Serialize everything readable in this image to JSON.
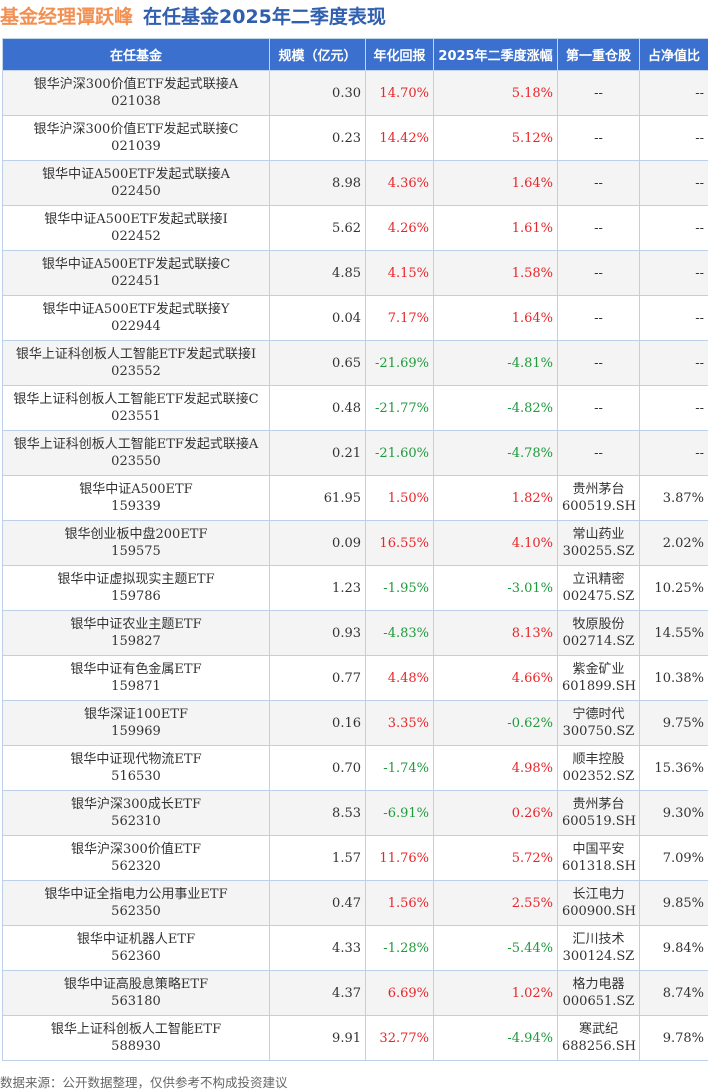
{
  "title": {
    "manager": "基金经理谭跃峰",
    "subtitle": "在任基金2025年二季度表现"
  },
  "colors": {
    "header_bg": "#3b70cf",
    "positive": "#e8262a",
    "negative": "#1f9a3c",
    "title_orange": "#f29052",
    "title_blue": "#2f5fae"
  },
  "columns": [
    "在任基金",
    "规模（亿元）",
    "年化回报",
    "2025年二季度涨幅",
    "第一重仓股",
    "占净值比"
  ],
  "rows": [
    [
      "银华沪深300价值ETF发起式联接A",
      "021038",
      "0.30",
      "14.70%",
      "5.18%",
      "--",
      "",
      "--"
    ],
    [
      "银华沪深300价值ETF发起式联接C",
      "021039",
      "0.23",
      "14.42%",
      "5.12%",
      "--",
      "",
      "--"
    ],
    [
      "银华中证A500ETF发起式联接A",
      "022450",
      "8.98",
      "4.36%",
      "1.64%",
      "--",
      "",
      "--"
    ],
    [
      "银华中证A500ETF发起式联接I",
      "022452",
      "5.62",
      "4.26%",
      "1.61%",
      "--",
      "",
      "--"
    ],
    [
      "银华中证A500ETF发起式联接C",
      "022451",
      "4.85",
      "4.15%",
      "1.58%",
      "--",
      "",
      "--"
    ],
    [
      "银华中证A500ETF发起式联接Y",
      "022944",
      "0.04",
      "7.17%",
      "1.64%",
      "--",
      "",
      "--"
    ],
    [
      "银华上证科创板人工智能ETF发起式联接I",
      "023552",
      "0.65",
      "-21.69%",
      "-4.81%",
      "--",
      "",
      "--"
    ],
    [
      "银华上证科创板人工智能ETF发起式联接C",
      "023551",
      "0.48",
      "-21.77%",
      "-4.82%",
      "--",
      "",
      "--"
    ],
    [
      "银华上证科创板人工智能ETF发起式联接A",
      "023550",
      "0.21",
      "-21.60%",
      "-4.78%",
      "--",
      "",
      "--"
    ],
    [
      "银华中证A500ETF",
      "159339",
      "61.95",
      "1.50%",
      "1.82%",
      "贵州茅台",
      "600519.SH",
      "3.87%"
    ],
    [
      "银华创业板中盘200ETF",
      "159575",
      "0.09",
      "16.55%",
      "4.10%",
      "常山药业",
      "300255.SZ",
      "2.02%"
    ],
    [
      "银华中证虚拟现实主题ETF",
      "159786",
      "1.23",
      "-1.95%",
      "-3.01%",
      "立讯精密",
      "002475.SZ",
      "10.25%"
    ],
    [
      "银华中证农业主题ETF",
      "159827",
      "0.93",
      "-4.83%",
      "8.13%",
      "牧原股份",
      "002714.SZ",
      "14.55%"
    ],
    [
      "银华中证有色金属ETF",
      "159871",
      "0.77",
      "4.48%",
      "4.66%",
      "紫金矿业",
      "601899.SH",
      "10.38%"
    ],
    [
      "银华深证100ETF",
      "159969",
      "0.16",
      "3.35%",
      "-0.62%",
      "宁德时代",
      "300750.SZ",
      "9.75%"
    ],
    [
      "银华中证现代物流ETF",
      "516530",
      "0.70",
      "-1.74%",
      "4.98%",
      "顺丰控股",
      "002352.SZ",
      "15.36%"
    ],
    [
      "银华沪深300成长ETF",
      "562310",
      "8.53",
      "-6.91%",
      "0.26%",
      "贵州茅台",
      "600519.SH",
      "9.30%"
    ],
    [
      "银华沪深300价值ETF",
      "562320",
      "1.57",
      "11.76%",
      "5.72%",
      "中国平安",
      "601318.SH",
      "7.09%"
    ],
    [
      "银华中证全指电力公用事业ETF",
      "562350",
      "0.47",
      "1.56%",
      "2.55%",
      "长江电力",
      "600900.SH",
      "9.85%"
    ],
    [
      "银华中证机器人ETF",
      "562360",
      "4.33",
      "-1.28%",
      "-5.44%",
      "汇川技术",
      "300124.SZ",
      "9.84%"
    ],
    [
      "银华中证高股息策略ETF",
      "563180",
      "4.37",
      "6.69%",
      "1.02%",
      "格力电器",
      "000651.SZ",
      "8.74%"
    ],
    [
      "银华上证科创板人工智能ETF",
      "588930",
      "9.91",
      "32.77%",
      "-4.94%",
      "寒武纪",
      "688256.SH",
      "9.78%"
    ]
  ],
  "footer": "数据来源：公开数据整理，仅供参考不构成投资建议"
}
